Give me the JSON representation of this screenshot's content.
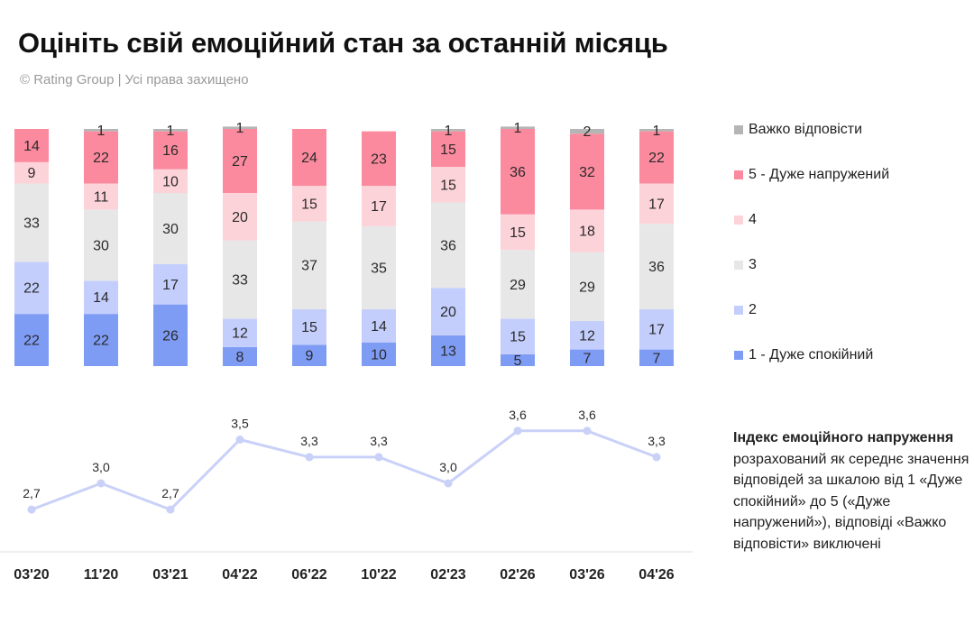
{
  "title": "Оцініть свій емоційний стан за останній місяць",
  "subtitle": "© Rating Group | Усі права захищено",
  "colors": {
    "cat1": "#7f9cf5",
    "cat2": "#c4cefc",
    "cat3": "#e7e7e7",
    "cat4": "#fdd3da",
    "cat5": "#fb8a9e",
    "hard": "#b5b5b5",
    "index_line": "#c9d1f8",
    "baseline": "#dddddd"
  },
  "legend": [
    {
      "key": "hard",
      "label": "Важко відповісти"
    },
    {
      "key": "cat5",
      "label": "5 - Дуже напружений"
    },
    {
      "key": "cat4",
      "label": "4"
    },
    {
      "key": "cat3",
      "label": "3"
    },
    {
      "key": "cat2",
      "label": "2"
    },
    {
      "key": "cat1",
      "label": "1 - Дуже спокійний"
    }
  ],
  "note": {
    "title": "Індекс емоційного напруження",
    "text": "розрахований як середнє значення відповідей за шкалою від 1 «Дуже спокійний» до 5 («Дуже напружений»), відповіді «Важко відповісти» виключені"
  },
  "chart_data": [
    {
      "type": "bar",
      "stacked": true,
      "categories": [
        "03'20",
        "11'20",
        "03'21",
        "04'22",
        "06'22",
        "10'22",
        "02'23",
        "02'26",
        "03'26",
        "04'26"
      ],
      "series": [
        {
          "name": "1 - Дуже спокійний",
          "key": "cat1",
          "values": [
            22,
            22,
            26,
            8,
            9,
            10,
            13,
            5,
            7,
            7
          ]
        },
        {
          "name": "2",
          "key": "cat2",
          "values": [
            22,
            14,
            17,
            12,
            15,
            14,
            20,
            15,
            12,
            17
          ]
        },
        {
          "name": "3",
          "key": "cat3",
          "values": [
            33,
            30,
            30,
            33,
            37,
            35,
            36,
            29,
            29,
            36
          ]
        },
        {
          "name": "4",
          "key": "cat4",
          "values": [
            9,
            11,
            10,
            20,
            15,
            17,
            15,
            15,
            18,
            17
          ]
        },
        {
          "name": "5 - Дуже напружений",
          "key": "cat5",
          "values": [
            14,
            22,
            16,
            27,
            24,
            23,
            15,
            36,
            32,
            22
          ]
        },
        {
          "name": "Важко відповісти",
          "key": "hard",
          "values": [
            0,
            1,
            1,
            1,
            0,
            0,
            1,
            1,
            2,
            1
          ]
        }
      ],
      "ylim": [
        0,
        100
      ]
    },
    {
      "type": "line",
      "name": "Індекс емоційного напруження",
      "categories": [
        "03'20",
        "11'20",
        "03'21",
        "04'22",
        "06'22",
        "10'22",
        "02'23",
        "02'26",
        "03'26",
        "04'26"
      ],
      "values": [
        2.7,
        3.0,
        2.7,
        3.5,
        3.3,
        3.3,
        3.0,
        3.6,
        3.6,
        3.3
      ],
      "labels": [
        "2,7",
        "3,0",
        "2,7",
        "3,5",
        "3,3",
        "3,3",
        "3,0",
        "3,6",
        "3,6",
        "3,3"
      ]
    }
  ]
}
